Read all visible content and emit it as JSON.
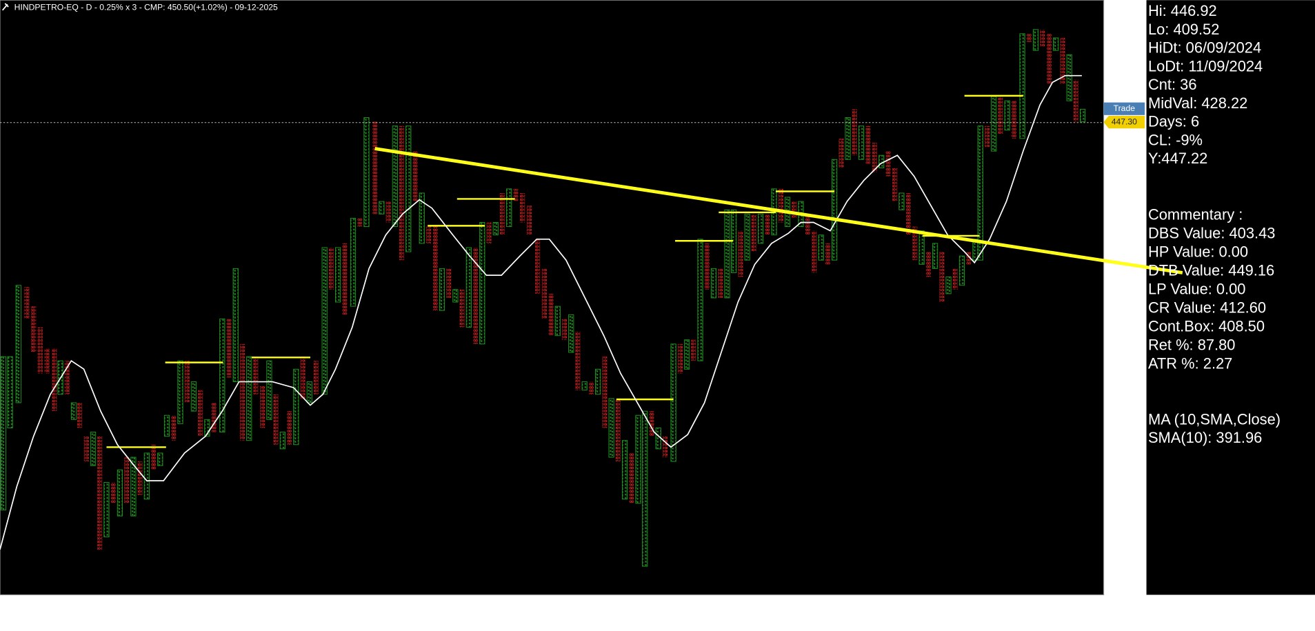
{
  "header": {
    "title": "HINDPETRO-EQ - D - 0.25% x 3 - CMP: 450.50(+1.02%) - 09-12-2025"
  },
  "price_tag": {
    "label": "Trade",
    "price": "447.30"
  },
  "panel": {
    "stats": [
      "Hi: 446.92",
      "Lo: 409.52",
      "HiDt: 06/09/2024",
      "LoDt: 11/09/2024",
      "Cnt: 36",
      "MidVal: 428.22",
      "Days: 6",
      "CL: -9%",
      "Y:447.22"
    ],
    "commentary_title": "Commentary :",
    "commentary": [
      "DBS Value:  403.43",
      "HP Value: 0.00",
      "DTB Value: 449.16",
      "LP Value: 0.00",
      "CR Value: 412.60",
      "Cont.Box: 408.50",
      "Ret %: 87.80",
      "ATR %: 2.27"
    ],
    "indicator": [
      "MA (10,SMA,Close)",
      "SMA(10): 391.96"
    ]
  }
}
